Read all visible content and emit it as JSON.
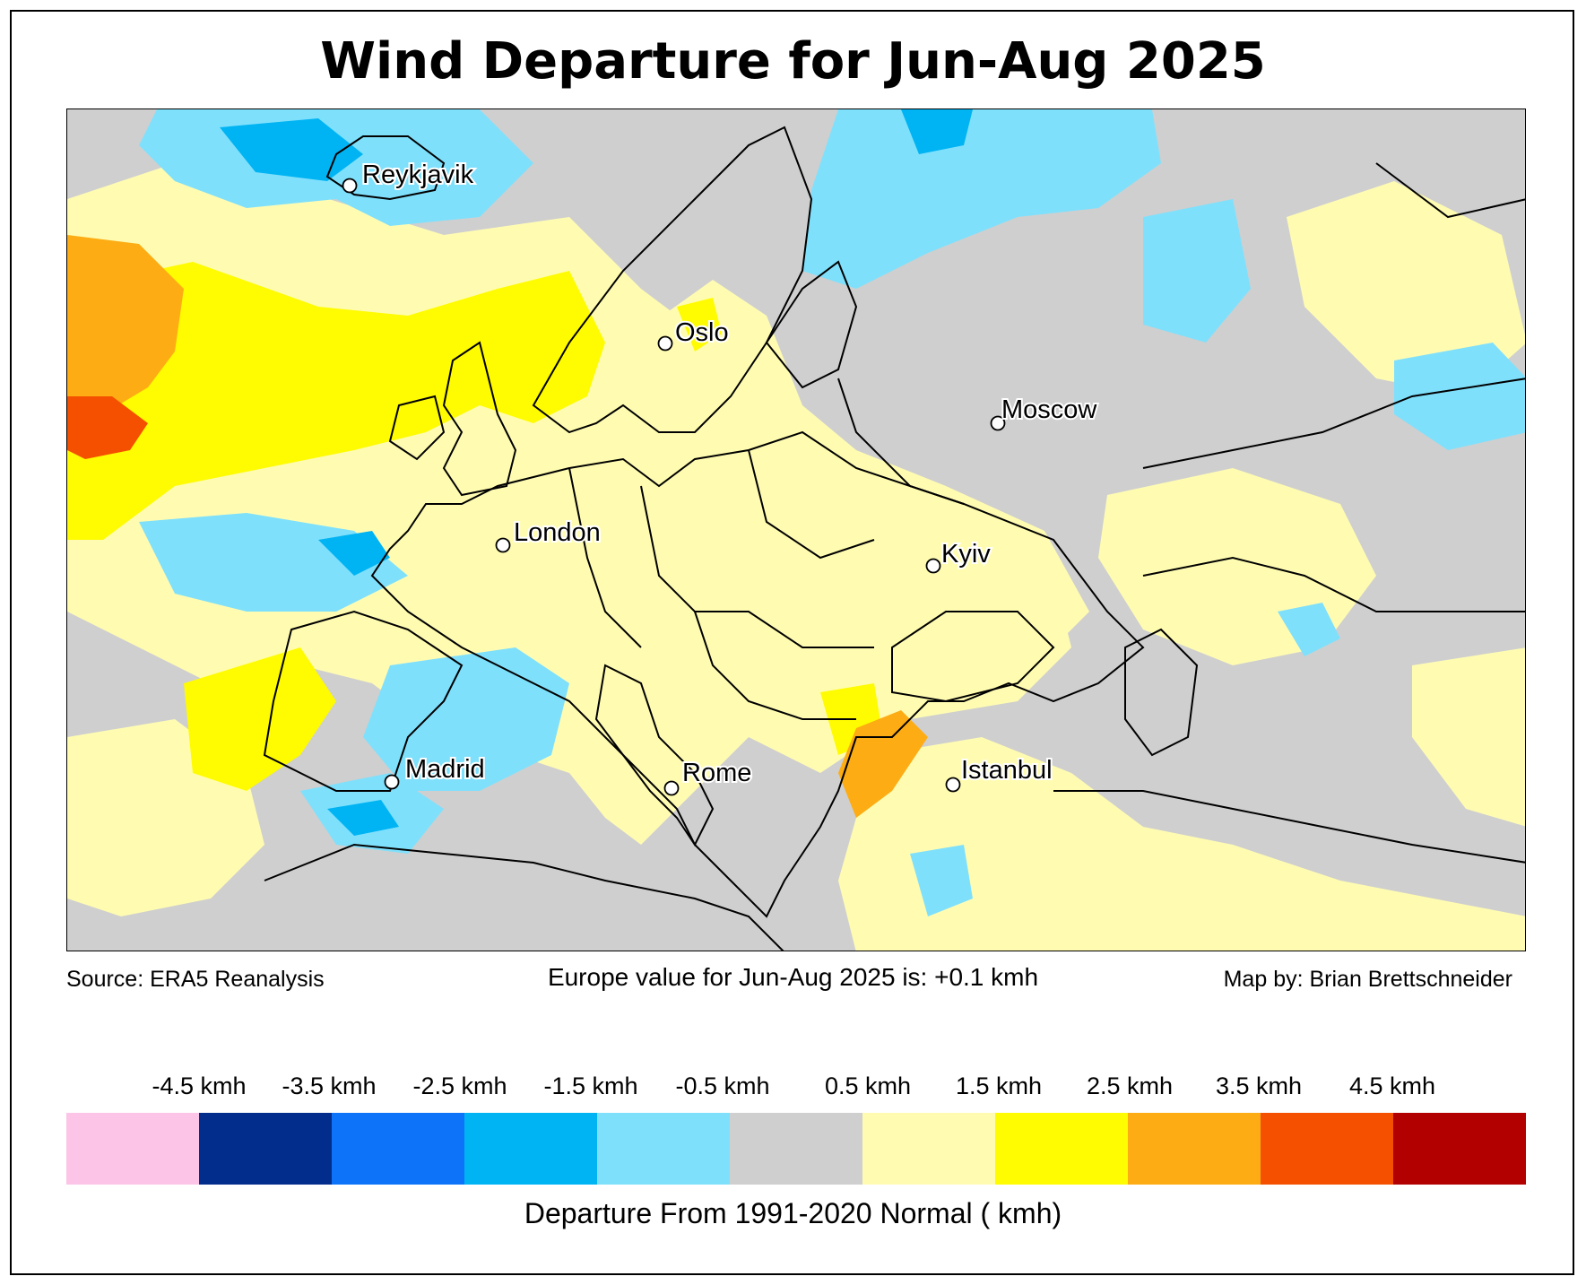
{
  "title": "Wind Departure for Jun-Aug 2025",
  "source": "Source: ERA5 Reanalysis",
  "summary": "Europe value for Jun-Aug 2025 is: +0.1 kmh",
  "credit": "Map by: Brian Brettschneider",
  "colorbar": {
    "label": "Departure From 1991-2020 Normal ( kmh)",
    "ticks": [
      "-4.5 kmh",
      "-3.5 kmh",
      "-2.5 kmh",
      "-1.5 kmh",
      "-0.5 kmh",
      "0.5 kmh",
      "1.5 kmh",
      "2.5 kmh",
      "3.5 kmh",
      "4.5 kmh"
    ],
    "colors": [
      "#fcc4e6",
      "#032d8c",
      "#0d74fa",
      "#00b4f3",
      "#7fe0fc",
      "#cfcfcf",
      "#fffcb2",
      "#fffb00",
      "#fdac13",
      "#f54f00",
      "#b20000"
    ]
  },
  "cities": [
    {
      "name": "Reykjavik"
    },
    {
      "name": "Oslo"
    },
    {
      "name": "Moscow"
    },
    {
      "name": "London"
    },
    {
      "name": "Kyiv"
    },
    {
      "name": "Madrid"
    },
    {
      "name": "Rome"
    },
    {
      "name": "Istanbul"
    }
  ]
}
